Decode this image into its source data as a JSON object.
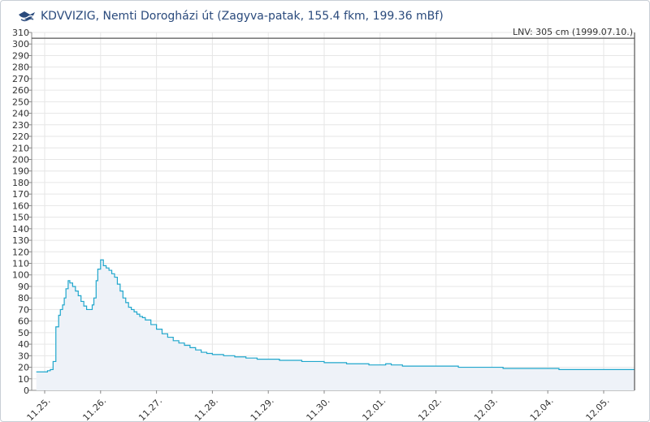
{
  "header": {
    "logo_icon": "kdvvizig-logo-icon",
    "title": "KDVVIZIG, Nemti Dorogházi út (Zagyva-patak, 155.4 fkm, 199.36 mBf)"
  },
  "chart_data": {
    "type": "area",
    "title": "KDVVIZIG, Nemti Dorogházi út (Zagyva-patak, 155.4 fkm, 199.36 mBf)",
    "xlabel": "",
    "ylabel": "",
    "ylim": [
      0,
      310
    ],
    "xlim": [
      0,
      11.1
    ],
    "yticks": [
      0,
      10,
      20,
      30,
      40,
      50,
      60,
      70,
      80,
      90,
      100,
      110,
      120,
      130,
      140,
      150,
      160,
      170,
      180,
      190,
      200,
      210,
      220,
      230,
      240,
      250,
      260,
      270,
      280,
      290,
      300,
      310
    ],
    "xticks": [
      {
        "x": 0,
        "label": "11.25."
      },
      {
        "x": 1,
        "label": "11.26."
      },
      {
        "x": 2,
        "label": "11.27."
      },
      {
        "x": 3,
        "label": "11.28."
      },
      {
        "x": 4,
        "label": "11.29."
      },
      {
        "x": 5,
        "label": "11.30."
      },
      {
        "x": 6,
        "label": "12.01."
      },
      {
        "x": 7,
        "label": "12.02."
      },
      {
        "x": 8,
        "label": "12.03."
      },
      {
        "x": 9,
        "label": "12.04."
      },
      {
        "x": 10,
        "label": "12.05."
      }
    ],
    "reference_line": {
      "value": 305,
      "label": "LNV: 305 cm (1999.07.10.)"
    },
    "grid": true,
    "colors": {
      "line": "#1fa6cc",
      "fill": "#eef2f8",
      "reference": "#555555",
      "grid": "#e6e6e6"
    },
    "series": [
      {
        "x": [
          -0.15,
          0.05,
          0.1,
          0.15,
          0.2,
          0.25,
          0.28,
          0.32,
          0.35,
          0.38,
          0.42,
          0.45,
          0.5,
          0.55,
          0.6,
          0.65,
          0.7,
          0.75,
          0.8,
          0.85,
          0.88,
          0.92,
          0.95,
          1.0,
          1.05,
          1.1,
          1.15,
          1.2,
          1.25,
          1.3,
          1.35,
          1.4,
          1.45,
          1.5,
          1.55,
          1.6,
          1.65,
          1.7,
          1.75,
          1.8,
          1.9,
          2.0,
          2.1,
          2.2,
          2.3,
          2.4,
          2.5,
          2.6,
          2.7,
          2.8,
          2.9,
          3.0,
          3.2,
          3.4,
          3.6,
          3.8,
          4.0,
          4.2,
          4.4,
          4.6,
          4.8,
          5.0,
          5.2,
          5.4,
          5.6,
          5.8,
          6.0,
          6.1,
          6.2,
          6.4,
          6.6,
          6.8,
          7.0,
          7.2,
          7.4,
          7.6,
          7.8,
          8.0,
          8.2,
          8.4,
          8.6,
          8.8,
          9.0,
          9.2,
          9.4,
          9.6,
          9.8,
          10.0,
          10.2,
          10.4,
          10.6,
          10.8,
          11.0
        ],
        "y": [
          16,
          17,
          18,
          25,
          55,
          65,
          70,
          74,
          80,
          88,
          95,
          93,
          90,
          86,
          82,
          77,
          73,
          70,
          70,
          74,
          80,
          95,
          105,
          113,
          108,
          106,
          104,
          101,
          98,
          92,
          86,
          80,
          76,
          72,
          70,
          68,
          66,
          64,
          63,
          61,
          57,
          53,
          49,
          46,
          43,
          41,
          39,
          37,
          35,
          33,
          32,
          31,
          30,
          29,
          28,
          27,
          27,
          26,
          26,
          25,
          25,
          24,
          24,
          23,
          23,
          22,
          22,
          23,
          22,
          21,
          21,
          21,
          21,
          21,
          20,
          20,
          20,
          20,
          19,
          19,
          19,
          19,
          19,
          18,
          18,
          18,
          18,
          18,
          18,
          18,
          18,
          18,
          18
        ]
      }
    ]
  }
}
